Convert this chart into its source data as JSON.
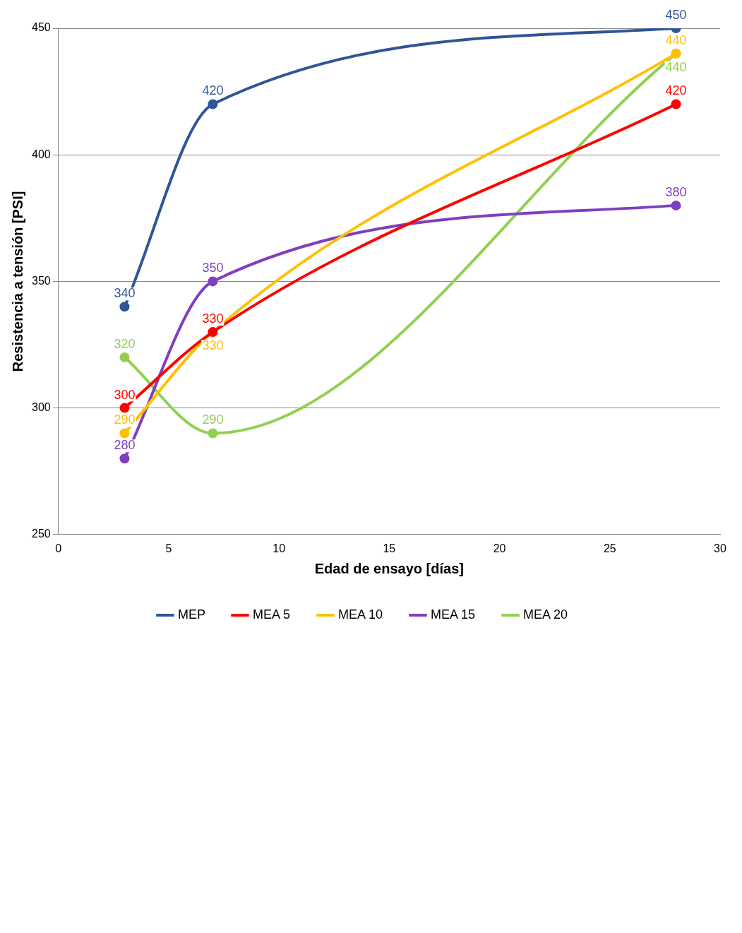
{
  "chart_data": {
    "type": "line",
    "xlabel": "Edad de ensayo [días]",
    "ylabel": "Resistencia a tensión [PSI]",
    "x": [
      3,
      7,
      28
    ],
    "series": [
      {
        "name": "MEP",
        "color": "#2f5597",
        "values": [
          340,
          420,
          450
        ]
      },
      {
        "name": "MEA 5",
        "color": "#ff0000",
        "values": [
          300,
          330,
          420
        ]
      },
      {
        "name": "MEA 10",
        "color": "#ffc000",
        "values": [
          290,
          330,
          440
        ]
      },
      {
        "name": "MEA 15",
        "color": "#7f3fbf",
        "values": [
          280,
          350,
          380
        ]
      },
      {
        "name": "MEA 20",
        "color": "#92d050",
        "values": [
          320,
          290,
          440
        ]
      }
    ],
    "xlim": [
      0,
      30
    ],
    "xticks": [
      0,
      5,
      10,
      15,
      20,
      25,
      30
    ],
    "ylim": [
      250,
      450
    ],
    "yticks": [
      250,
      300,
      350,
      400,
      450
    ],
    "grid": "y",
    "legend": "bottom",
    "data_labels": true,
    "marker": "circle"
  }
}
